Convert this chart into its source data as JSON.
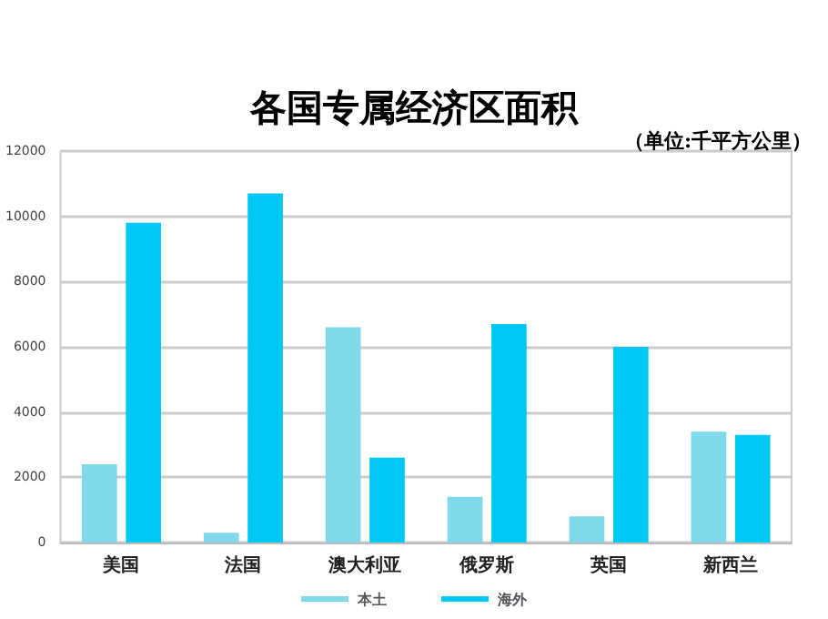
{
  "chart_data": {
    "type": "bar",
    "title": "各国专属经济区面积",
    "subtitle": "（单位:千平方公里）",
    "categories": [
      "美国",
      "法国",
      "澳大利亚",
      "俄罗斯",
      "英国",
      "新西兰"
    ],
    "series": [
      {
        "name": "本土",
        "color": "#7fd9ea",
        "values": [
          2400,
          300,
          6600,
          1400,
          800,
          3400
        ]
      },
      {
        "name": "海外",
        "color": "#00c8f6",
        "values": [
          9800,
          10700,
          2600,
          6700,
          6000,
          3300
        ]
      }
    ],
    "ylim": [
      0,
      12000
    ],
    "yticks": [
      0,
      2000,
      4000,
      6000,
      8000,
      10000,
      12000
    ],
    "grid": "y",
    "legend": "bottom"
  }
}
